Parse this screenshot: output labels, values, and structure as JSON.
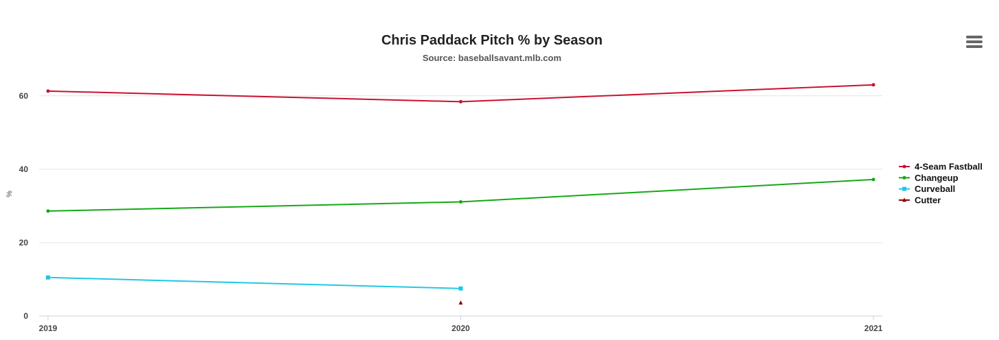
{
  "chart_data": {
    "type": "line",
    "title": "Chris Paddack Pitch % by Season",
    "subtitle": "Source: baseballsavant.mlb.com",
    "ylabel": "%",
    "xlabel": "",
    "categories": [
      "2019",
      "2020",
      "2021"
    ],
    "ylim": [
      0,
      60
    ],
    "yticks": [
      0,
      20,
      40,
      60
    ],
    "grid": true,
    "legend_position": "right",
    "series": [
      {
        "name": "4-Seam Fastball",
        "color": "#c8102e",
        "marker": "circle",
        "values": [
          61.3,
          58.4,
          63.0
        ]
      },
      {
        "name": "Changeup",
        "color": "#13a813",
        "marker": "circle",
        "values": [
          28.6,
          31.1,
          37.2
        ]
      },
      {
        "name": "Curveball",
        "color": "#1ec8e6",
        "marker": "square",
        "values": [
          10.5,
          7.5,
          null
        ]
      },
      {
        "name": "Cutter",
        "color": "#8b0000",
        "marker": "triangle",
        "values": [
          null,
          3.6,
          null
        ]
      }
    ]
  },
  "menu": {
    "icon": "hamburger-menu-icon"
  }
}
